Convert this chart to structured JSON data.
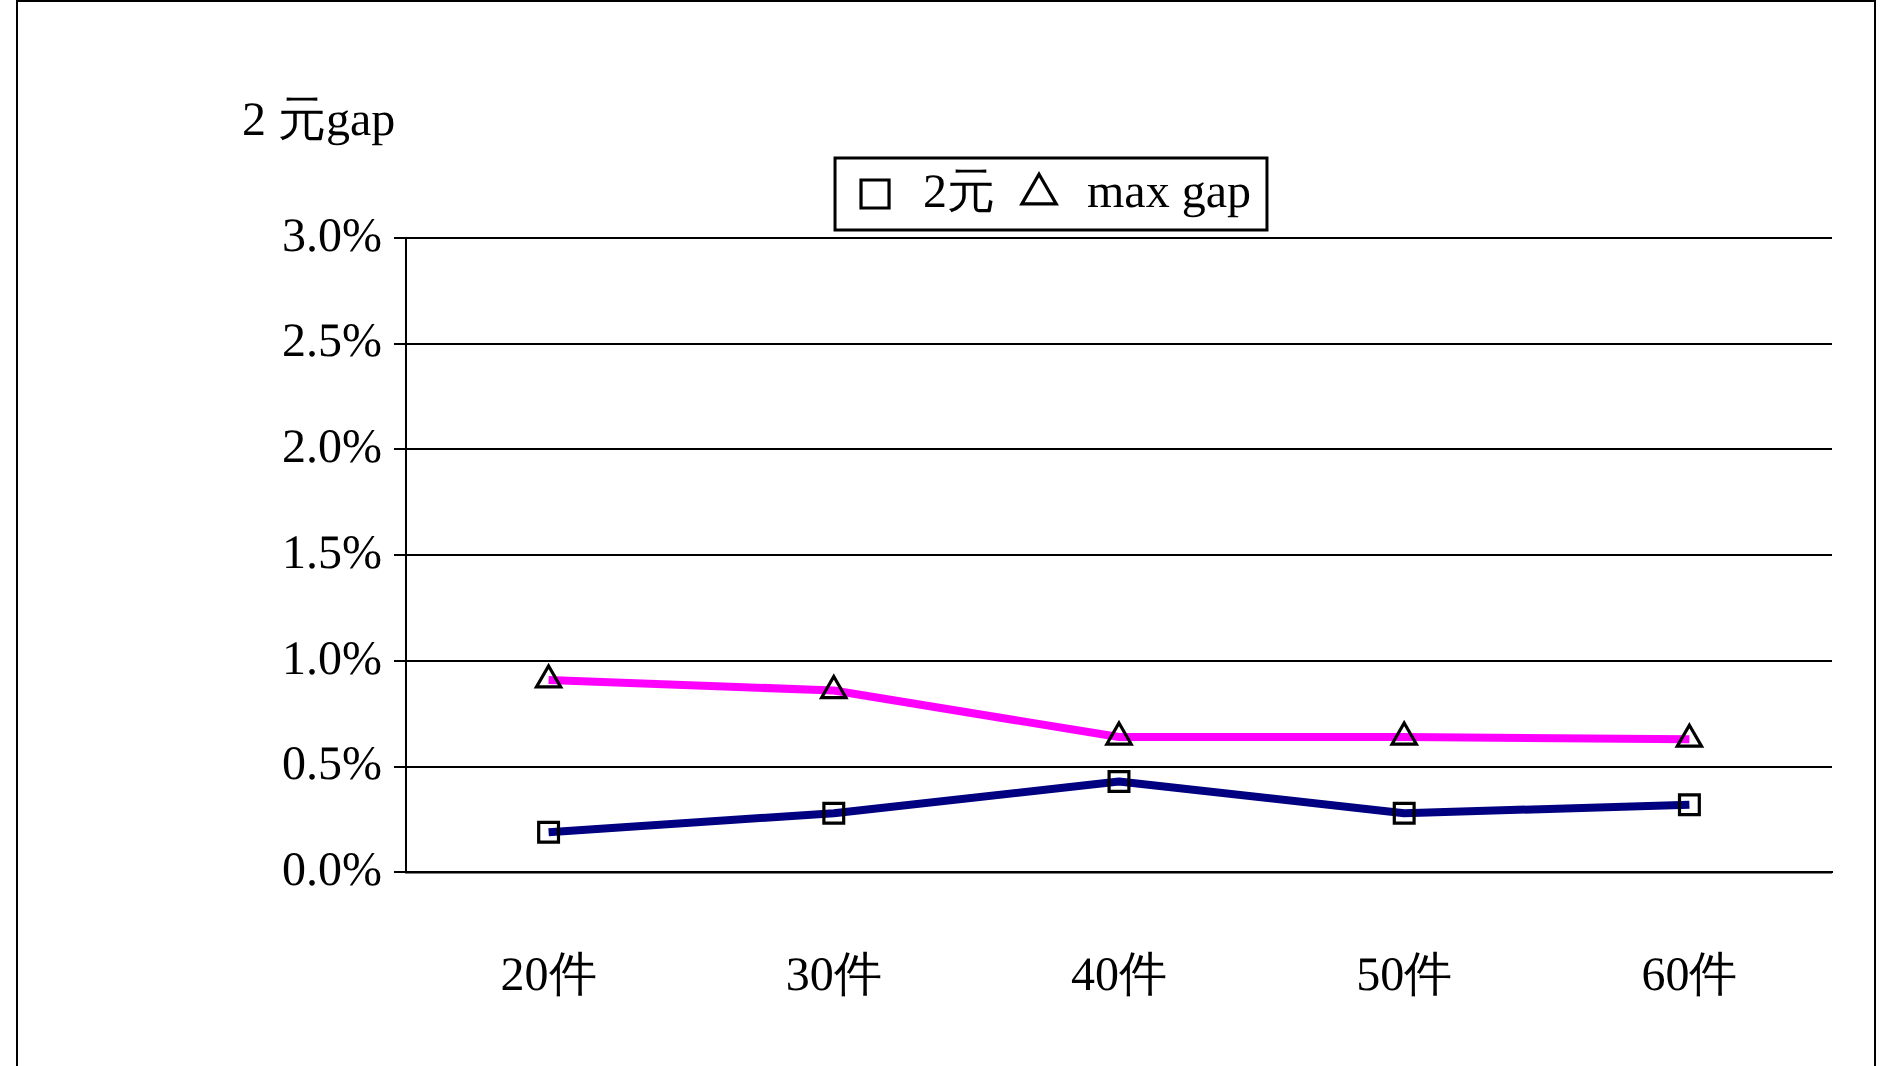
{
  "chart_data": {
    "type": "line",
    "ylabel": "2 元gap",
    "categories": [
      "20件",
      "30件",
      "40件",
      "50件",
      "60件"
    ],
    "series": [
      {
        "name": "2元",
        "color": "#000080",
        "marker": "square",
        "values": [
          0.19,
          0.28,
          0.43,
          0.28,
          0.32
        ]
      },
      {
        "name": "max gap",
        "color": "#ff00ff",
        "marker": "triangle",
        "values": [
          0.91,
          0.86,
          0.64,
          0.64,
          0.63
        ]
      }
    ],
    "ylim": [
      0,
      3
    ],
    "yticks": [
      {
        "value": 0,
        "label": "0.0%"
      },
      {
        "value": 0.5,
        "label": "0.5%"
      },
      {
        "value": 1,
        "label": "1.0%"
      },
      {
        "value": 1.5,
        "label": "1.5%"
      },
      {
        "value": 2,
        "label": "2.0%"
      },
      {
        "value": 2.5,
        "label": "2.5%"
      },
      {
        "value": 3,
        "label": "3.0%"
      }
    ],
    "grid": "y",
    "legend": "top",
    "line_style": "solid"
  }
}
